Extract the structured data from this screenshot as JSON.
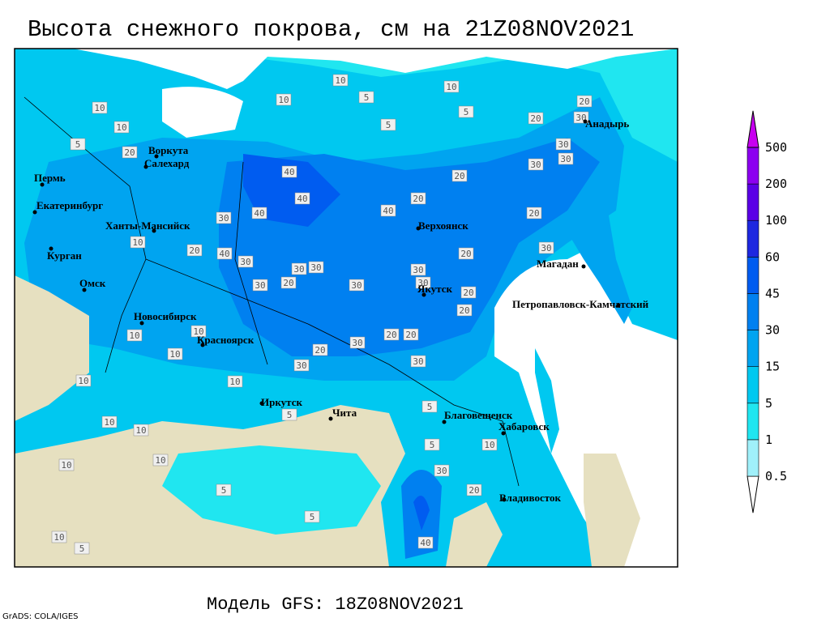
{
  "header": {
    "title": "Высота снежного покрова, см на 21Z08NOV2021"
  },
  "footer": {
    "model": "Модель GFS: 18Z08NOV2021",
    "credit": "GrADS: COLA/IGES"
  },
  "legend": {
    "levels": [
      0.5,
      1,
      5,
      15,
      30,
      45,
      60,
      100,
      200,
      500
    ],
    "colors": [
      "#ffffff",
      "#a0f0fa",
      "#20e6f0",
      "#00c8f0",
      "#00a4f0",
      "#0080f0",
      "#005cf0",
      "#1e28e0",
      "#5a00e6",
      "#8c00f0",
      "#c800f0"
    ]
  },
  "cities": [
    "Воркута",
    "Салехард",
    "Пермь",
    "Екатеринбург",
    "Ханты-Мансийск",
    "Курган",
    "Омск",
    "Новосибирск",
    "Красноярск",
    "Иркутск",
    "Чита",
    "Верхоянск",
    "Якутск",
    "Магадан",
    "Анадырь",
    "Петропавловск-Камчатский",
    "Благовещенск",
    "Хабаровск",
    "Владивосток"
  ],
  "contour_labels": [
    10,
    10,
    5,
    10,
    5,
    5,
    10,
    10,
    5,
    20,
    20,
    30,
    20,
    30,
    30,
    30,
    40,
    40,
    40,
    20,
    40,
    20,
    20,
    30,
    20,
    40,
    10,
    30,
    30,
    30,
    20,
    30,
    30,
    20,
    30,
    30,
    30,
    20,
    20,
    10,
    10,
    10,
    20,
    30,
    20,
    20,
    30,
    30,
    10,
    10,
    30,
    40,
    10,
    20,
    10,
    5,
    5,
    10,
    5,
    5,
    5,
    5,
    10,
    10,
    10
  ]
}
